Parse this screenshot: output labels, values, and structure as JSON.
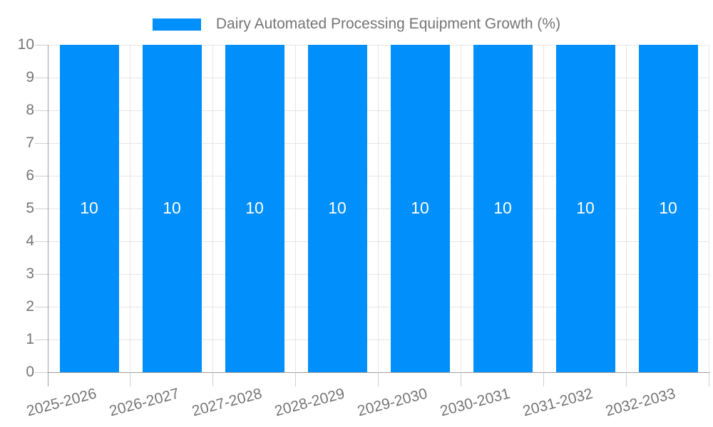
{
  "legend": {
    "label": "Dairy Automated Processing Equipment Growth (%)"
  },
  "chart_data": {
    "type": "bar",
    "title": "Dairy Automated Processing Equipment Growth (%)",
    "categories": [
      "2025-2026",
      "2026-2027",
      "2027-2028",
      "2028-2029",
      "2029-2030",
      "2030-2031",
      "2031-2032",
      "2032-2033"
    ],
    "values": [
      10,
      10,
      10,
      10,
      10,
      10,
      10,
      10
    ],
    "data_labels": [
      "10",
      "10",
      "10",
      "10",
      "10",
      "10",
      "10",
      "10"
    ],
    "xlabel": "",
    "ylabel": "",
    "ylim": [
      0,
      10
    ],
    "yticks": [
      0,
      1,
      2,
      3,
      4,
      5,
      6,
      7,
      8,
      9,
      10
    ],
    "grid": "on",
    "legend_position": "top-center",
    "colors": {
      "bar": "#008ffb",
      "grid": "#e6e6e6",
      "axis": "#9e9e9e",
      "tick": "#cfcfcf",
      "label": "#757575",
      "data_label": "#ffffff"
    }
  }
}
